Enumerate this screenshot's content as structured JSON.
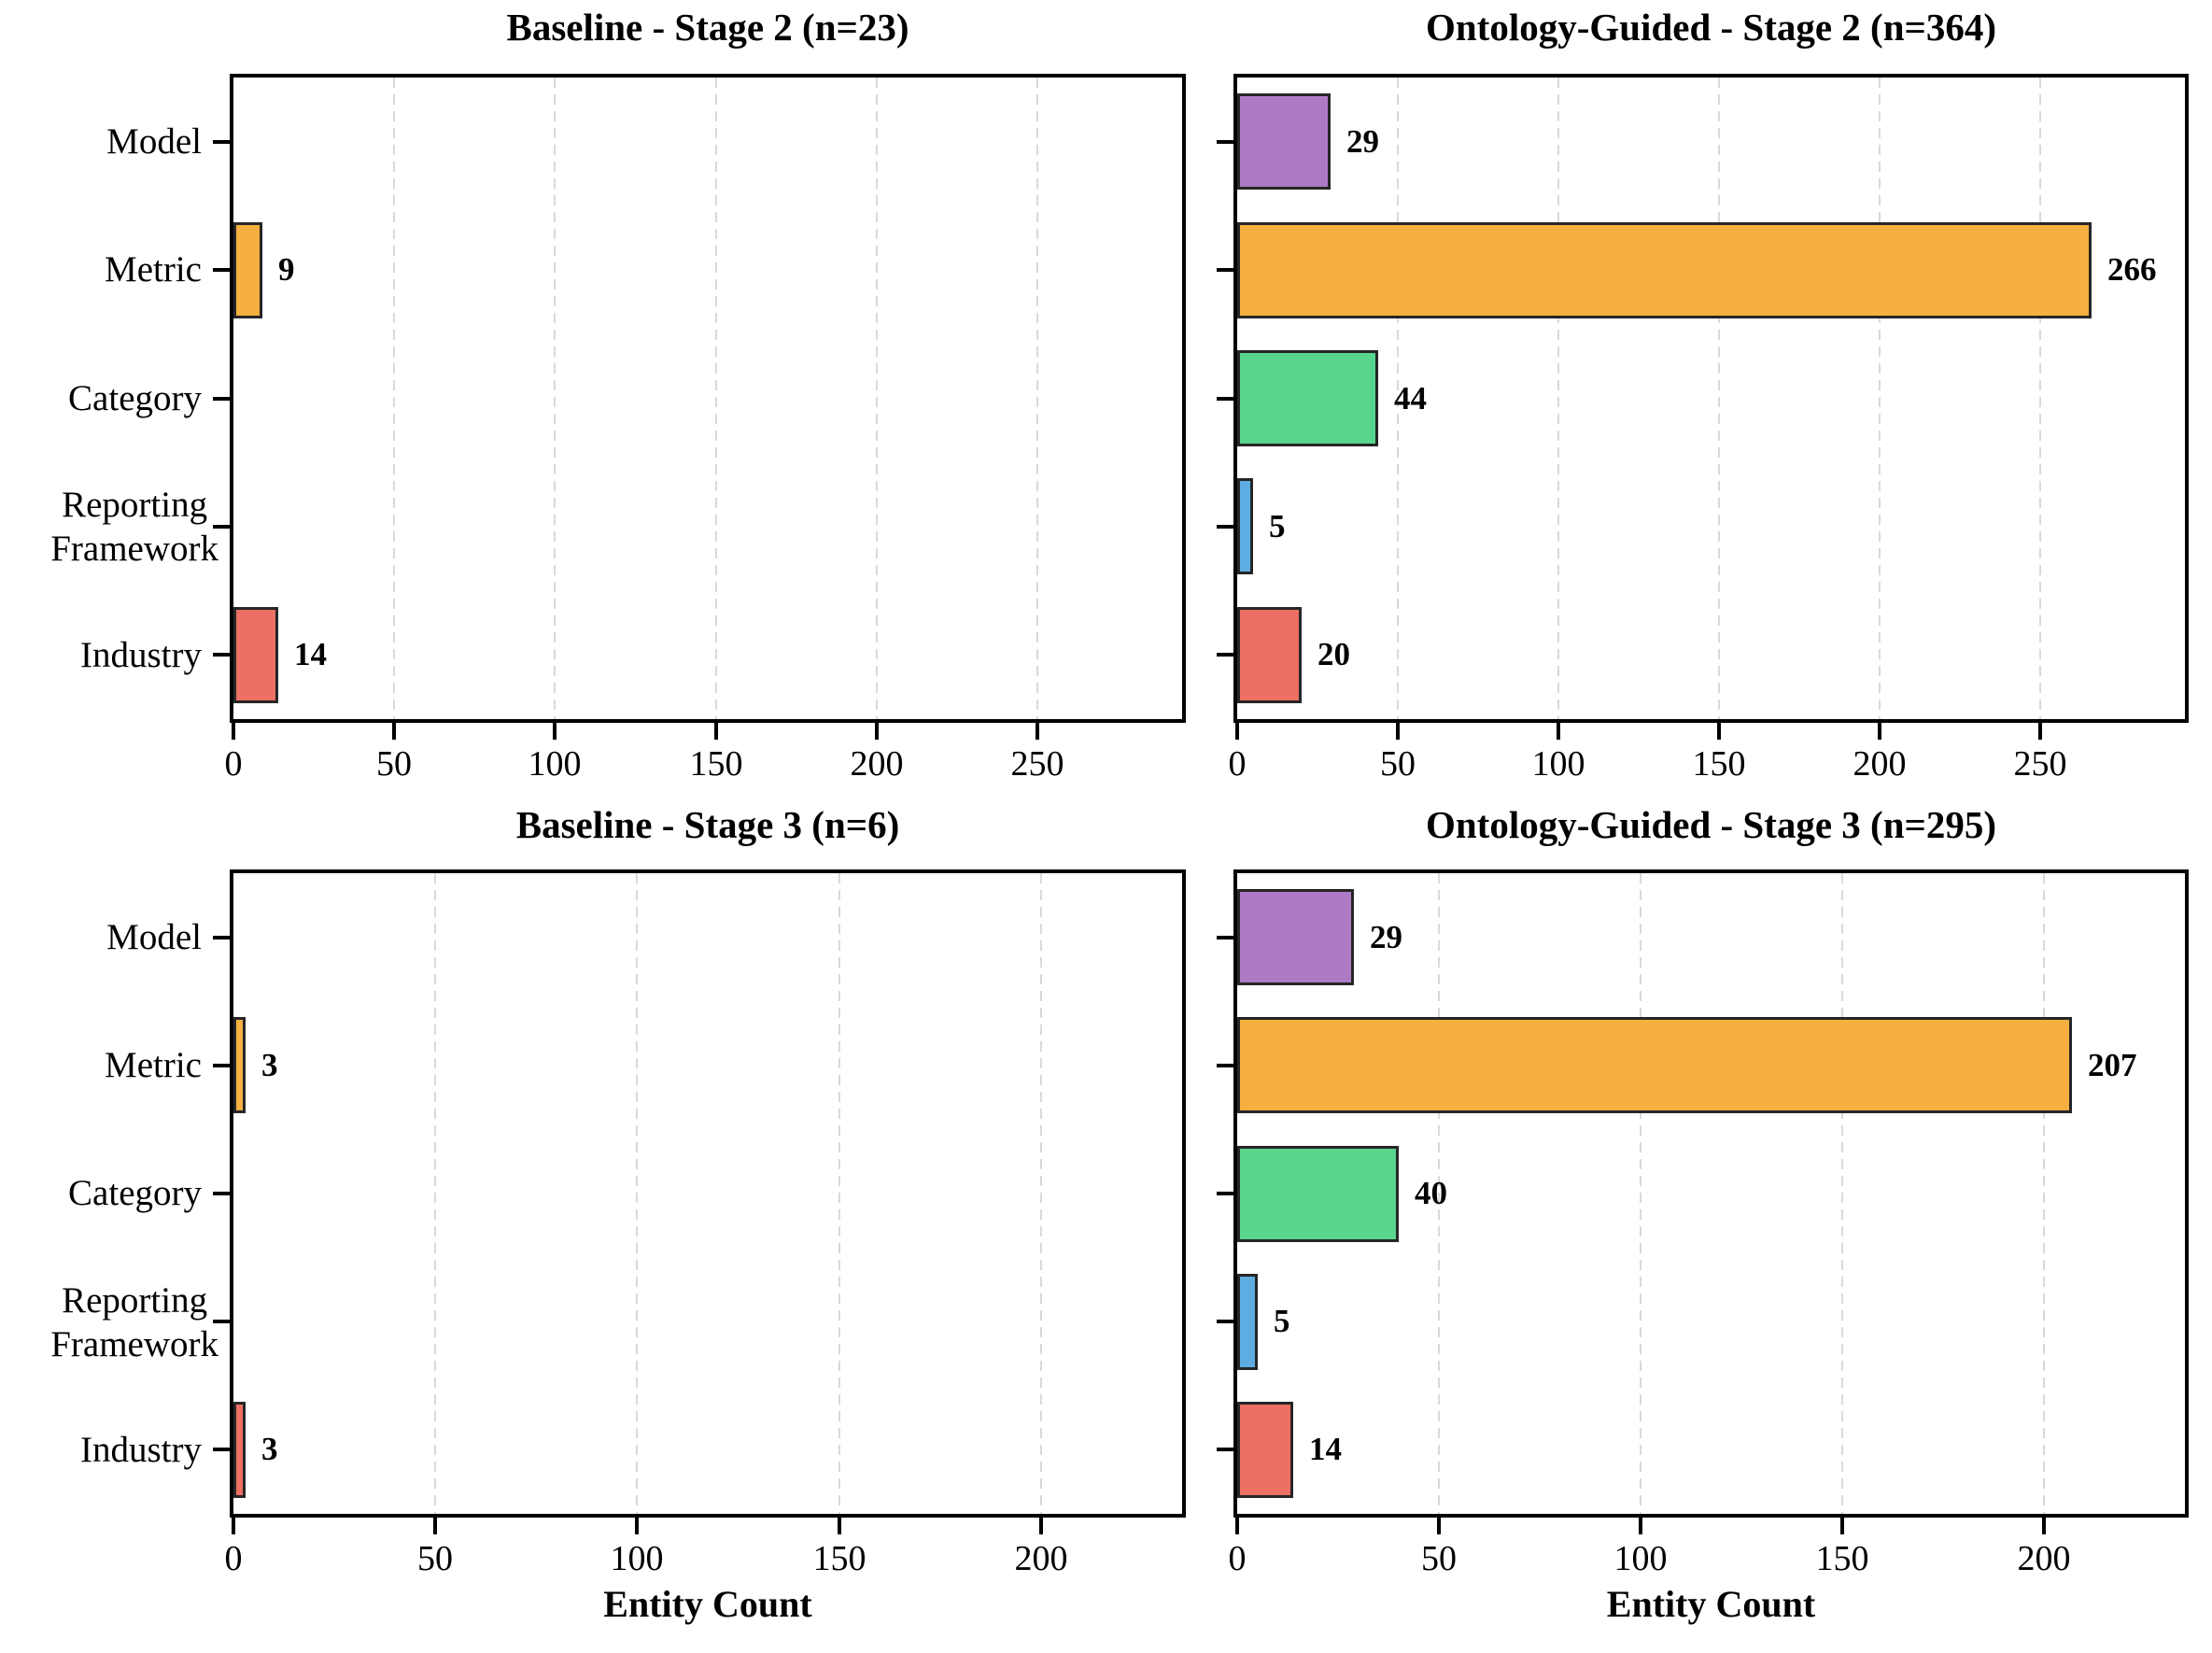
{
  "figure": {
    "background": "#ffffff",
    "text_color": "#000000",
    "axis_color": "#000000",
    "grid_color": "#d9d9d9",
    "bar_edge_color": "#262626",
    "bar_colors": [
      "#af7ac5",
      "#f5b041",
      "#58d68d",
      "#5dade2",
      "#ec7063"
    ],
    "categories": [
      "Model",
      "Metric",
      "Category",
      "Reporting\nFramework",
      "Industry"
    ]
  },
  "chart_data": [
    {
      "type": "bar",
      "orientation": "horizontal",
      "panel": "top-left",
      "title": "Baseline - Stage 2 (n=23)",
      "categories": [
        "Model",
        "Metric",
        "Category",
        "Reporting\nFramework",
        "Industry"
      ],
      "values": [
        0,
        9,
        0,
        0,
        14
      ],
      "xlim": [
        0,
        295
      ],
      "xticks": [
        0,
        50,
        100,
        150,
        200,
        250
      ],
      "xlabel": "",
      "grid": "vertical-dashed",
      "legend": "none"
    },
    {
      "type": "bar",
      "orientation": "horizontal",
      "panel": "top-right",
      "title": "Ontology-Guided - Stage 2 (n=364)",
      "categories": [
        "Model",
        "Metric",
        "Category",
        "Reporting\nFramework",
        "Industry"
      ],
      "values": [
        29,
        266,
        44,
        5,
        20
      ],
      "xlim": [
        0,
        295
      ],
      "xticks": [
        0,
        50,
        100,
        150,
        200,
        250
      ],
      "xlabel": "",
      "grid": "vertical-dashed",
      "legend": "none"
    },
    {
      "type": "bar",
      "orientation": "horizontal",
      "panel": "bottom-left",
      "title": "Baseline - Stage 3 (n=6)",
      "categories": [
        "Model",
        "Metric",
        "Category",
        "Reporting\nFramework",
        "Industry"
      ],
      "values": [
        0,
        3,
        0,
        0,
        3
      ],
      "xlim": [
        0,
        235
      ],
      "xticks": [
        0,
        50,
        100,
        150,
        200
      ],
      "xlabel": "Entity Count",
      "grid": "vertical-dashed",
      "legend": "none"
    },
    {
      "type": "bar",
      "orientation": "horizontal",
      "panel": "bottom-right",
      "title": "Ontology-Guided - Stage 3 (n=295)",
      "categories": [
        "Model",
        "Metric",
        "Category",
        "Reporting\nFramework",
        "Industry"
      ],
      "values": [
        29,
        207,
        40,
        5,
        14
      ],
      "xlim": [
        0,
        235
      ],
      "xticks": [
        0,
        50,
        100,
        150,
        200
      ],
      "xlabel": "Entity Count",
      "grid": "vertical-dashed",
      "legend": "none"
    }
  ]
}
